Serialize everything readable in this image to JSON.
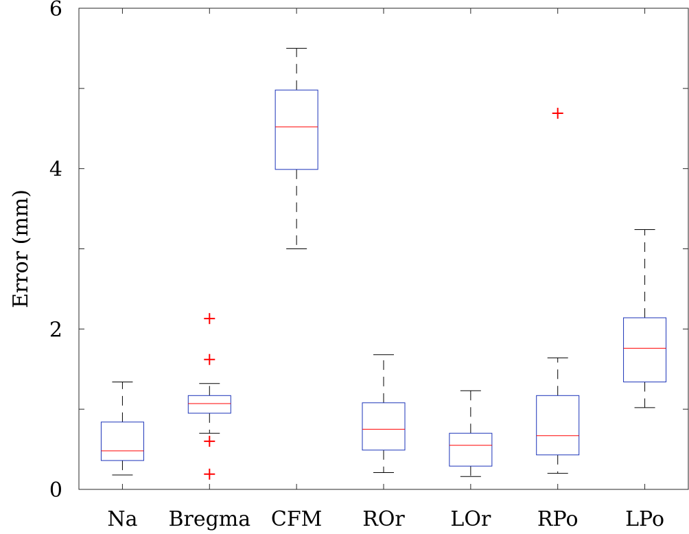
{
  "chart_data": {
    "type": "boxplot",
    "title": "",
    "xlabel": "",
    "ylabel": "Error (mm)",
    "ylim": [
      0,
      6
    ],
    "yticks": [
      0,
      1,
      2,
      3,
      4,
      5,
      6
    ],
    "ytick_labels": [
      "0",
      "",
      "2",
      "",
      "4",
      "",
      "6"
    ],
    "categories": [
      "Na",
      "Bregma",
      "CFM",
      "ROr",
      "LOr",
      "RPo",
      "LPo"
    ],
    "boxes": [
      {
        "name": "Na",
        "whisker_low": 0.18,
        "q1": 0.36,
        "median": 0.48,
        "q3": 0.84,
        "whisker_high": 1.34,
        "outliers": []
      },
      {
        "name": "Bregma",
        "whisker_low": 0.7,
        "q1": 0.95,
        "median": 1.07,
        "q3": 1.17,
        "whisker_high": 1.32,
        "outliers": [
          2.13,
          1.62,
          0.6,
          0.19
        ]
      },
      {
        "name": "CFM",
        "whisker_low": 3.0,
        "q1": 3.99,
        "median": 4.52,
        "q3": 4.98,
        "whisker_high": 5.5,
        "outliers": []
      },
      {
        "name": "ROr",
        "whisker_low": 0.21,
        "q1": 0.49,
        "median": 0.75,
        "q3": 1.08,
        "whisker_high": 1.68,
        "outliers": []
      },
      {
        "name": "LOr",
        "whisker_low": 0.16,
        "q1": 0.29,
        "median": 0.55,
        "q3": 0.7,
        "whisker_high": 1.23,
        "outliers": []
      },
      {
        "name": "RPo",
        "whisker_low": 0.2,
        "q1": 0.43,
        "median": 0.67,
        "q3": 1.17,
        "whisker_high": 1.64,
        "outliers": [
          4.69
        ]
      },
      {
        "name": "LPo",
        "whisker_low": 1.02,
        "q1": 1.34,
        "median": 1.76,
        "q3": 2.14,
        "whisker_high": 3.24,
        "outliers": []
      }
    ],
    "colors": {
      "box": "#1a32b8",
      "median": "#ff0000",
      "whisker": "#000000",
      "outlier": "#ff0000",
      "axis": "#262626"
    },
    "grid": false,
    "legend": "none"
  }
}
